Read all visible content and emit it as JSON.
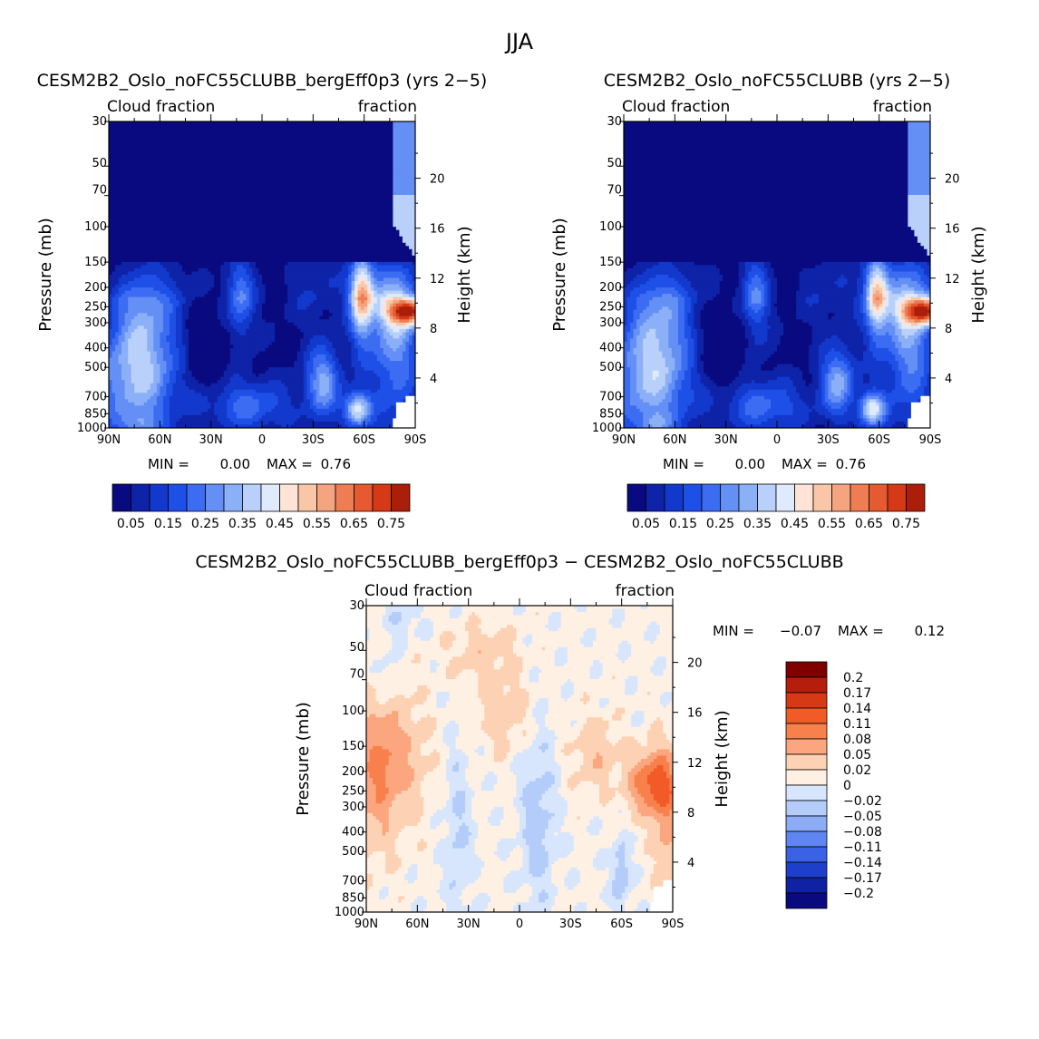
{
  "figure_title": "JJA",
  "chart_data": [
    {
      "id": "left",
      "type": "heatmap",
      "title": "CESM2B2_Oslo_noFC55CLUBB_bergEff0p3 (yrs 2−5)",
      "left_string": "Cloud fraction",
      "right_string": "fraction",
      "xlabel": "",
      "ylabel": "Pressure (mb)",
      "y2label": "Height (km)",
      "x_ticks": [
        "90N",
        "60N",
        "30N",
        "0",
        "30S",
        "60S",
        "90S"
      ],
      "y_ticks": [
        "30",
        "50",
        "70",
        "100",
        "150",
        "200",
        "250",
        "300",
        "400",
        "500",
        "700",
        "850",
        "1000"
      ],
      "y2_ticks": [
        "20",
        "16",
        "12",
        "8",
        "4"
      ],
      "min_label": "MIN =",
      "min_value": "0.00",
      "max_label": "MAX =",
      "max_value": "0.76",
      "levels": [
        "0.05",
        "0.1",
        "0.15",
        "0.2",
        "0.25",
        "0.3",
        "0.35",
        "0.4",
        "0.45",
        "0.5",
        "0.55",
        "0.6",
        "0.65",
        "0.7",
        "0.75"
      ],
      "colorbar_labels": [
        "0.05",
        "0.15",
        "0.25",
        "0.35",
        "0.45",
        "0.55",
        "0.65",
        "0.75"
      ],
      "colors": [
        "#0a0a80",
        "#0e23a8",
        "#1238cc",
        "#1e50e8",
        "#3c6cf2",
        "#6490f6",
        "#8cb0f8",
        "#b8d0fa",
        "#dfeafc",
        "#fde4d6",
        "#f9c6a8",
        "#f4a47e",
        "#ee7d53",
        "#e55a30",
        "#d43a16",
        "#aa1e0a",
        "#800000"
      ],
      "missing_color": "#ffffff"
    },
    {
      "id": "right",
      "type": "heatmap",
      "title": "CESM2B2_Oslo_noFC55CLUBB (yrs 2−5)",
      "left_string": "Cloud fraction",
      "right_string": "fraction",
      "xlabel": "",
      "ylabel": "Pressure (mb)",
      "y2label": "Height (km)",
      "x_ticks": [
        "90N",
        "60N",
        "30N",
        "0",
        "30S",
        "60S",
        "90S"
      ],
      "y_ticks": [
        "30",
        "50",
        "70",
        "100",
        "150",
        "200",
        "250",
        "300",
        "400",
        "500",
        "700",
        "850",
        "1000"
      ],
      "y2_ticks": [
        "20",
        "16",
        "12",
        "8",
        "4"
      ],
      "min_label": "MIN =",
      "min_value": "0.00",
      "max_label": "MAX =",
      "max_value": "0.76",
      "levels": [
        "0.05",
        "0.1",
        "0.15",
        "0.2",
        "0.25",
        "0.3",
        "0.35",
        "0.4",
        "0.45",
        "0.5",
        "0.55",
        "0.6",
        "0.65",
        "0.7",
        "0.75"
      ],
      "colorbar_labels": [
        "0.05",
        "0.15",
        "0.25",
        "0.35",
        "0.45",
        "0.55",
        "0.65",
        "0.75"
      ],
      "colors": [
        "#0a0a80",
        "#0e23a8",
        "#1238cc",
        "#1e50e8",
        "#3c6cf2",
        "#6490f6",
        "#8cb0f8",
        "#b8d0fa",
        "#dfeafc",
        "#fde4d6",
        "#f9c6a8",
        "#f4a47e",
        "#ee7d53",
        "#e55a30",
        "#d43a16",
        "#aa1e0a",
        "#800000"
      ],
      "missing_color": "#ffffff"
    },
    {
      "id": "diff",
      "type": "heatmap",
      "title": "CESM2B2_Oslo_noFC55CLUBB_bergEff0p3 − CESM2B2_Oslo_noFC55CLUBB",
      "left_string": "Cloud fraction",
      "right_string": "fraction",
      "xlabel": "",
      "ylabel": "Pressure (mb)",
      "y2label": "Height (km)",
      "x_ticks": [
        "90N",
        "60N",
        "30N",
        "0",
        "30S",
        "60S",
        "90S"
      ],
      "y_ticks": [
        "30",
        "50",
        "70",
        "100",
        "150",
        "200",
        "250",
        "300",
        "400",
        "500",
        "700",
        "850",
        "1000"
      ],
      "y2_ticks": [
        "20",
        "16",
        "12",
        "8",
        "4"
      ],
      "min_label": "MIN =",
      "min_value": "−0.07",
      "max_label": "MAX =",
      "max_value": "0.12",
      "colorbar_labels": [
        "0.2",
        "0.17",
        "0.14",
        "0.11",
        "0.08",
        "0.05",
        "0.02",
        "0",
        "−0.02",
        "−0.05",
        "−0.08",
        "−0.11",
        "−0.14",
        "−0.17",
        "−0.2"
      ],
      "colors": [
        "#800000",
        "#b41e0a",
        "#d63a14",
        "#f25a28",
        "#f8804c",
        "#fba67e",
        "#fdd2b4",
        "#fff0e4",
        "#d7e6fc",
        "#b4ccfa",
        "#8cacf6",
        "#5f86f0",
        "#3a62e6",
        "#1c40cc",
        "#0e22a2",
        "#0a0a80"
      ],
      "missing_color": "#ffffff"
    }
  ]
}
